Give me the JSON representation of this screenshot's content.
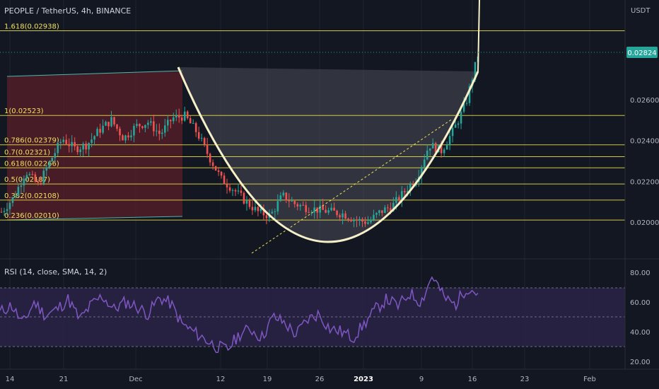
{
  "header": {
    "symbol_line": "PEOPLE / TetherUS, 4h, BINANCE"
  },
  "price_axis": {
    "currency": "USDT",
    "ticks": [
      "0.02600",
      "0.02400",
      "0.02200",
      "0.02000"
    ],
    "current_price": "0.02824",
    "current_price_value": 0.02824
  },
  "rsi_panel": {
    "label": "RSI (14, close, SMA, 14, 2)",
    "ticks": [
      "80.00",
      "60.00",
      "40.00",
      "20.00"
    ]
  },
  "time_axis": {
    "ticks": [
      "14",
      "21",
      "Dec",
      "12",
      "19",
      "26",
      "2023",
      "9",
      "16",
      "23",
      "Feb"
    ]
  },
  "colors": {
    "background": "#131722",
    "fib_line": "#e6d94a",
    "fib_label": "#f0e060",
    "cup_curve": "#f5f0c8",
    "bull": "#26a69a",
    "bear": "#ef5350",
    "rsi_line": "#7e57c2",
    "rsi_band": "#2a2346",
    "price_tag": "#26a69a",
    "red_box": "#5a1f28",
    "grey_box": "#4a4d57"
  },
  "chart_data": {
    "type": "candlestick",
    "title": "PEOPLE / TetherUS, 4h, BINANCE",
    "y_unit": "USDT",
    "ylim": [
      0.019,
      0.03
    ],
    "fib_levels": [
      {
        "label": "1.618(0.02938)",
        "value": 0.02938
      },
      {
        "label": "1(0.02523)",
        "value": 0.02523
      },
      {
        "label": "0.786(0.02379)",
        "value": 0.02379
      },
      {
        "label": "0.7(0.02321)",
        "value": 0.02321
      },
      {
        "label": "0.618(0.02266)",
        "value": 0.02266
      },
      {
        "label": "0.5(0.02187)",
        "value": 0.02187
      },
      {
        "label": "0.382(0.02108)",
        "value": 0.02108
      },
      {
        "label": "0.236(0.02010)",
        "value": 0.0201
      }
    ],
    "price_series_approx": [
      0.0205,
      0.0212,
      0.0225,
      0.0218,
      0.023,
      0.0241,
      0.0236,
      0.0238,
      0.0245,
      0.025,
      0.0241,
      0.0247,
      0.0249,
      0.0243,
      0.0251,
      0.0252,
      0.0244,
      0.0232,
      0.0221,
      0.0216,
      0.021,
      0.0205,
      0.0203,
      0.0213,
      0.0209,
      0.0207,
      0.0206,
      0.0205,
      0.0204,
      0.0201,
      0.02,
      0.0205,
      0.0208,
      0.0215,
      0.0222,
      0.0238,
      0.0235,
      0.0245,
      0.0258,
      0.0282
    ],
    "rsi": {
      "ylim": [
        15,
        85
      ],
      "band": [
        30,
        70
      ],
      "midline": 50,
      "values": [
        53,
        58,
        45,
        60,
        51,
        55,
        62,
        48,
        58,
        64,
        55,
        60,
        57,
        52,
        63,
        59,
        45,
        40,
        35,
        30,
        28,
        38,
        42,
        36,
        50,
        46,
        38,
        48,
        52,
        42,
        40,
        36,
        45,
        55,
        62,
        57,
        66,
        60,
        78,
        63,
        58,
        70,
        66
      ]
    }
  }
}
